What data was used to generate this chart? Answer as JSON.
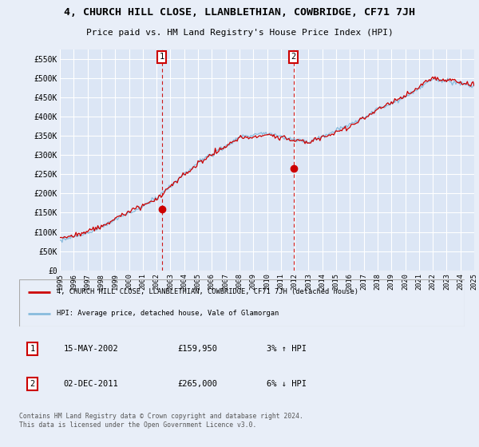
{
  "title": "4, CHURCH HILL CLOSE, LLANBLETHIAN, COWBRIDGE, CF71 7JH",
  "subtitle": "Price paid vs. HM Land Registry's House Price Index (HPI)",
  "ylabel_ticks": [
    "£0",
    "£50K",
    "£100K",
    "£150K",
    "£200K",
    "£250K",
    "£300K",
    "£350K",
    "£400K",
    "£450K",
    "£500K",
    "£550K"
  ],
  "ytick_values": [
    0,
    50000,
    100000,
    150000,
    200000,
    250000,
    300000,
    350000,
    400000,
    450000,
    500000,
    550000
  ],
  "ylim": [
    0,
    575000
  ],
  "background_color": "#e8eef8",
  "plot_bg": "#dce6f5",
  "grid_color": "#ffffff",
  "red_color": "#cc0000",
  "blue_color": "#88bbdd",
  "annotation1": {
    "label": "1",
    "date": "15-MAY-2002",
    "price": 159950,
    "note": "3% ↑ HPI",
    "x_year": 2002.37
  },
  "annotation2": {
    "label": "2",
    "date": "02-DEC-2011",
    "price": 265000,
    "note": "6% ↓ HPI",
    "x_year": 2011.92
  },
  "legend_red": "4, CHURCH HILL CLOSE, LLANBLETHIAN, COWBRIDGE, CF71 7JH (detached house)",
  "legend_blue": "HPI: Average price, detached house, Vale of Glamorgan",
  "footer": "Contains HM Land Registry data © Crown copyright and database right 2024.\nThis data is licensed under the Open Government Licence v3.0.",
  "xmin": 1995,
  "xmax": 2025
}
